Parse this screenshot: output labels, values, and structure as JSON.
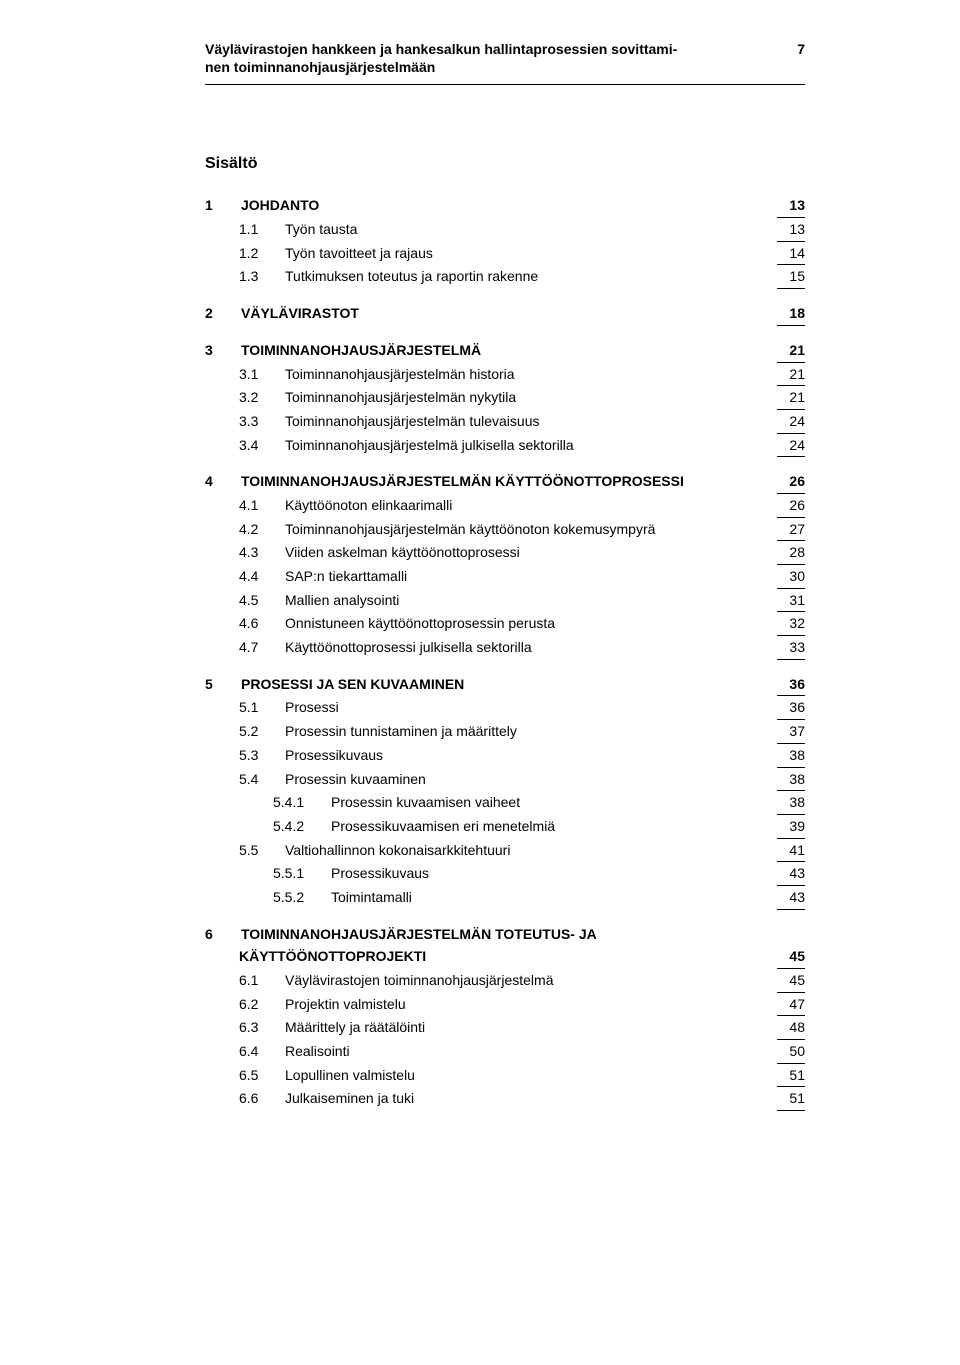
{
  "header": {
    "title_line1": "Väylävirastojen hankkeen ja hankesalkun hallintaprosessien sovittami-",
    "title_line2": "nen toiminnanohjausjärjestelmään",
    "page_number": "7"
  },
  "section_title": "Sisältö",
  "toc": [
    {
      "level": 0,
      "num": "1",
      "label": "JOHDANTO",
      "page": "13",
      "first": true
    },
    {
      "level": 1,
      "num": "1.1",
      "label": "Työn tausta",
      "page": "13"
    },
    {
      "level": 1,
      "num": "1.2",
      "label": "Työn tavoitteet ja rajaus",
      "page": "14"
    },
    {
      "level": 1,
      "num": "1.3",
      "label": "Tutkimuksen toteutus ja raportin rakenne",
      "page": "15"
    },
    {
      "level": 0,
      "num": "2",
      "label": "VÄYLÄVIRASTOT",
      "page": "18"
    },
    {
      "level": 0,
      "num": "3",
      "label": "TOIMINNANOHJAUSJÄRJESTELMÄ",
      "page": "21"
    },
    {
      "level": 1,
      "num": "3.1",
      "label": "Toiminnanohjausjärjestelmän historia",
      "page": "21"
    },
    {
      "level": 1,
      "num": "3.2",
      "label": "Toiminnanohjausjärjestelmän nykytila",
      "page": "21"
    },
    {
      "level": 1,
      "num": "3.3",
      "label": "Toiminnanohjausjärjestelmän tulevaisuus",
      "page": "24"
    },
    {
      "level": 1,
      "num": "3.4",
      "label": "Toiminnanohjausjärjestelmä julkisella sektorilla",
      "page": "24"
    },
    {
      "level": 0,
      "num": "4",
      "label": "TOIMINNANOHJAUSJÄRJESTELMÄN KÄYTTÖÖNOTTOPROSESSI",
      "page": "26"
    },
    {
      "level": 1,
      "num": "4.1",
      "label": "Käyttöönoton elinkaarimalli",
      "page": "26"
    },
    {
      "level": 1,
      "num": "4.2",
      "label": "Toiminnanohjausjärjestelmän käyttöönoton kokemusympyrä",
      "page": "27"
    },
    {
      "level": 1,
      "num": "4.3",
      "label": "Viiden askelman käyttöönottoprosessi",
      "page": "28"
    },
    {
      "level": 1,
      "num": "4.4",
      "label": "SAP:n tiekarttamalli",
      "page": "30"
    },
    {
      "level": 1,
      "num": "4.5",
      "label": "Mallien analysointi",
      "page": "31"
    },
    {
      "level": 1,
      "num": "4.6",
      "label": "Onnistuneen käyttöönottoprosessin perusta",
      "page": "32"
    },
    {
      "level": 1,
      "num": "4.7",
      "label": "Käyttöönottoprosessi julkisella sektorilla",
      "page": "33"
    },
    {
      "level": 0,
      "num": "5",
      "label": "PROSESSI JA SEN KUVAAMINEN",
      "page": "36"
    },
    {
      "level": 1,
      "num": "5.1",
      "label": "Prosessi",
      "page": "36"
    },
    {
      "level": 1,
      "num": "5.2",
      "label": "Prosessin tunnistaminen ja määrittely",
      "page": "37"
    },
    {
      "level": 1,
      "num": "5.3",
      "label": "Prosessikuvaus",
      "page": "38"
    },
    {
      "level": 1,
      "num": "5.4",
      "label": "Prosessin kuvaaminen",
      "page": "38"
    },
    {
      "level": 2,
      "num": "5.4.1",
      "label": "Prosessin kuvaamisen vaiheet",
      "page": "38"
    },
    {
      "level": 2,
      "num": "5.4.2",
      "label": "Prosessikuvaamisen eri menetelmiä",
      "page": "39"
    },
    {
      "level": 1,
      "num": "5.5",
      "label": "Valtiohallinnon kokonaisarkkitehtuuri",
      "page": "41"
    },
    {
      "level": 2,
      "num": "5.5.1",
      "label": "Prosessikuvaus",
      "page": "43"
    },
    {
      "level": 2,
      "num": "5.5.2",
      "label": "Toimintamalli",
      "page": "43"
    },
    {
      "level": 0,
      "num": "6",
      "label": "TOIMINNANOHJAUSJÄRJESTELMÄN TOTEUTUS- JA KÄYTTÖÖNOTTOPROJEKTI",
      "page": "45",
      "multiline": true,
      "label_line1": "TOIMINNANOHJAUSJÄRJESTELMÄN TOTEUTUS- JA",
      "label_line2": "KÄYTTÖÖNOTTOPROJEKTI"
    },
    {
      "level": 1,
      "num": "6.1",
      "label": "Väylävirastojen toiminnanohjausjärjestelmä",
      "page": "45"
    },
    {
      "level": 1,
      "num": "6.2",
      "label": "Projektin valmistelu",
      "page": "47"
    },
    {
      "level": 1,
      "num": "6.3",
      "label": "Määrittely ja räätälöinti",
      "page": "48"
    },
    {
      "level": 1,
      "num": "6.4",
      "label": "Realisointi",
      "page": "50"
    },
    {
      "level": 1,
      "num": "6.5",
      "label": "Lopullinen valmistelu",
      "page": "51"
    },
    {
      "level": 1,
      "num": "6.6",
      "label": "Julkaiseminen ja tuki",
      "page": "51"
    }
  ]
}
